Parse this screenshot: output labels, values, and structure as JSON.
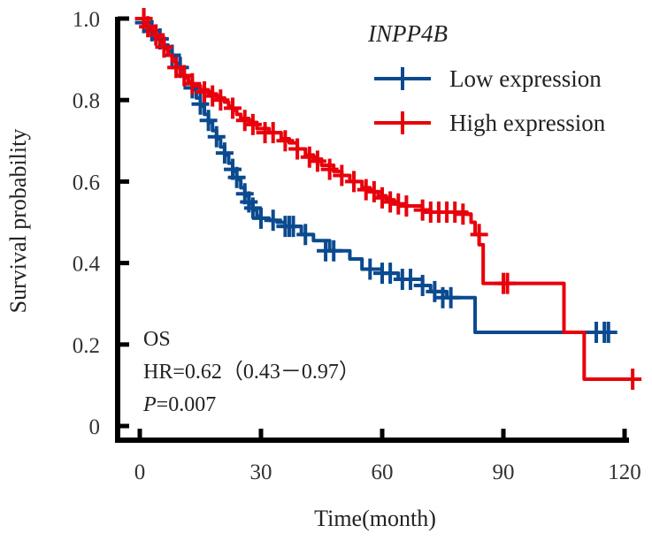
{
  "chart_data": {
    "type": "line",
    "subtype": "kaplan-meier",
    "title": "",
    "xlabel": "Time(month)",
    "ylabel": "Survival probability",
    "xlim": [
      -3,
      123
    ],
    "ylim": [
      -0.03,
      1.0
    ],
    "xticks": [
      0,
      30,
      60,
      90,
      120
    ],
    "xtick_labels": [
      "0",
      "30",
      "60",
      "90",
      "120"
    ],
    "yticks": [
      0,
      0.2,
      0.4,
      0.6,
      0.8,
      1.0
    ],
    "ytick_labels": [
      "0",
      "0.2",
      "0.4",
      "0.6",
      "0.8",
      "1.0"
    ],
    "grid": false,
    "legend": {
      "title": "INPP4B",
      "placement": "top-right",
      "entries": [
        "Low expression",
        "High expression"
      ]
    },
    "annotations": {
      "endpoint": "OS",
      "hr": "HR=0.62（0.43－0.97）",
      "p_label": "P",
      "p_value": "=0.007"
    },
    "series": [
      {
        "name": "Low expression",
        "color": "#0b4a8f",
        "steps": [
          [
            0,
            1.0
          ],
          [
            1,
            0.985
          ],
          [
            2,
            0.975
          ],
          [
            3,
            0.965
          ],
          [
            4,
            0.955
          ],
          [
            5,
            0.945
          ],
          [
            6,
            0.935
          ],
          [
            7,
            0.92
          ],
          [
            8,
            0.905
          ],
          [
            9,
            0.89
          ],
          [
            10,
            0.875
          ],
          [
            11,
            0.86
          ],
          [
            12,
            0.845
          ],
          [
            13,
            0.825
          ],
          [
            14,
            0.805
          ],
          [
            15,
            0.785
          ],
          [
            16,
            0.765
          ],
          [
            17,
            0.745
          ],
          [
            18,
            0.725
          ],
          [
            19,
            0.705
          ],
          [
            20,
            0.685
          ],
          [
            21,
            0.665
          ],
          [
            22,
            0.645
          ],
          [
            23,
            0.625
          ],
          [
            24,
            0.605
          ],
          [
            25,
            0.585
          ],
          [
            26,
            0.565
          ],
          [
            27,
            0.545
          ],
          [
            28,
            0.53
          ],
          [
            29,
            0.515
          ],
          [
            30,
            0.51
          ],
          [
            32,
            0.505
          ],
          [
            34,
            0.5
          ],
          [
            36,
            0.49
          ],
          [
            40,
            0.47
          ],
          [
            43,
            0.455
          ],
          [
            47,
            0.43
          ],
          [
            52,
            0.41
          ],
          [
            55,
            0.385
          ],
          [
            60,
            0.375
          ],
          [
            64,
            0.36
          ],
          [
            70,
            0.345
          ],
          [
            72,
            0.33
          ],
          [
            76,
            0.315
          ],
          [
            83,
            0.23
          ],
          [
            118,
            0.23
          ]
        ],
        "censors": [
          [
            1,
            0.99
          ],
          [
            3,
            0.97
          ],
          [
            5,
            0.95
          ],
          [
            8,
            0.91
          ],
          [
            10,
            0.88
          ],
          [
            13,
            0.83
          ],
          [
            15,
            0.79
          ],
          [
            17,
            0.75
          ],
          [
            19,
            0.71
          ],
          [
            21,
            0.67
          ],
          [
            23,
            0.63
          ],
          [
            24,
            0.61
          ],
          [
            26,
            0.57
          ],
          [
            27,
            0.55
          ],
          [
            28,
            0.535
          ],
          [
            30,
            0.51
          ],
          [
            33,
            0.505
          ],
          [
            36,
            0.49
          ],
          [
            37,
            0.49
          ],
          [
            38,
            0.49
          ],
          [
            41,
            0.47
          ],
          [
            46,
            0.43
          ],
          [
            48,
            0.43
          ],
          [
            57,
            0.385
          ],
          [
            60,
            0.375
          ],
          [
            62,
            0.375
          ],
          [
            65,
            0.36
          ],
          [
            67,
            0.36
          ],
          [
            70,
            0.345
          ],
          [
            73,
            0.33
          ],
          [
            75,
            0.315
          ],
          [
            77,
            0.315
          ],
          [
            113,
            0.23
          ],
          [
            115,
            0.23
          ],
          [
            116,
            0.23
          ]
        ]
      },
      {
        "name": "High expression",
        "color": "#e8000b",
        "steps": [
          [
            0,
            1.0
          ],
          [
            1,
            0.99
          ],
          [
            2,
            0.98
          ],
          [
            3,
            0.97
          ],
          [
            4,
            0.955
          ],
          [
            5,
            0.94
          ],
          [
            6,
            0.925
          ],
          [
            7,
            0.91
          ],
          [
            8,
            0.895
          ],
          [
            9,
            0.88
          ],
          [
            10,
            0.865
          ],
          [
            11,
            0.855
          ],
          [
            12,
            0.845
          ],
          [
            13,
            0.835
          ],
          [
            15,
            0.825
          ],
          [
            17,
            0.815
          ],
          [
            19,
            0.805
          ],
          [
            21,
            0.795
          ],
          [
            22,
            0.785
          ],
          [
            23,
            0.775
          ],
          [
            24,
            0.765
          ],
          [
            25,
            0.755
          ],
          [
            27,
            0.745
          ],
          [
            29,
            0.73
          ],
          [
            32,
            0.72
          ],
          [
            35,
            0.705
          ],
          [
            37,
            0.695
          ],
          [
            39,
            0.68
          ],
          [
            41,
            0.665
          ],
          [
            43,
            0.655
          ],
          [
            45,
            0.64
          ],
          [
            48,
            0.625
          ],
          [
            50,
            0.615
          ],
          [
            52,
            0.6
          ],
          [
            55,
            0.585
          ],
          [
            57,
            0.575
          ],
          [
            59,
            0.565
          ],
          [
            61,
            0.555
          ],
          [
            63,
            0.545
          ],
          [
            66,
            0.54
          ],
          [
            70,
            0.53
          ],
          [
            72,
            0.525
          ],
          [
            81,
            0.52
          ],
          [
            82,
            0.5
          ],
          [
            83,
            0.47
          ],
          [
            84,
            0.445
          ],
          [
            85,
            0.35
          ],
          [
            105,
            0.35
          ],
          [
            105,
            0.23
          ],
          [
            110,
            0.23
          ],
          [
            110,
            0.115
          ],
          [
            124,
            0.115
          ]
        ],
        "censors": [
          [
            1,
            1.0
          ],
          [
            2,
            0.98
          ],
          [
            4,
            0.96
          ],
          [
            6,
            0.93
          ],
          [
            9,
            0.88
          ],
          [
            11,
            0.86
          ],
          [
            13,
            0.84
          ],
          [
            16,
            0.82
          ],
          [
            18,
            0.81
          ],
          [
            20,
            0.8
          ],
          [
            23,
            0.78
          ],
          [
            26,
            0.75
          ],
          [
            28,
            0.74
          ],
          [
            31,
            0.72
          ],
          [
            33,
            0.72
          ],
          [
            36,
            0.7
          ],
          [
            39,
            0.68
          ],
          [
            42,
            0.66
          ],
          [
            44,
            0.65
          ],
          [
            47,
            0.63
          ],
          [
            50,
            0.615
          ],
          [
            53,
            0.6
          ],
          [
            56,
            0.58
          ],
          [
            58,
            0.575
          ],
          [
            60,
            0.56
          ],
          [
            62,
            0.55
          ],
          [
            64,
            0.545
          ],
          [
            66,
            0.54
          ],
          [
            70,
            0.53
          ],
          [
            72,
            0.525
          ],
          [
            74,
            0.525
          ],
          [
            76,
            0.525
          ],
          [
            78,
            0.525
          ],
          [
            80,
            0.52
          ],
          [
            84,
            0.47
          ],
          [
            90,
            0.35
          ],
          [
            91,
            0.35
          ],
          [
            122,
            0.115
          ]
        ]
      }
    ]
  }
}
